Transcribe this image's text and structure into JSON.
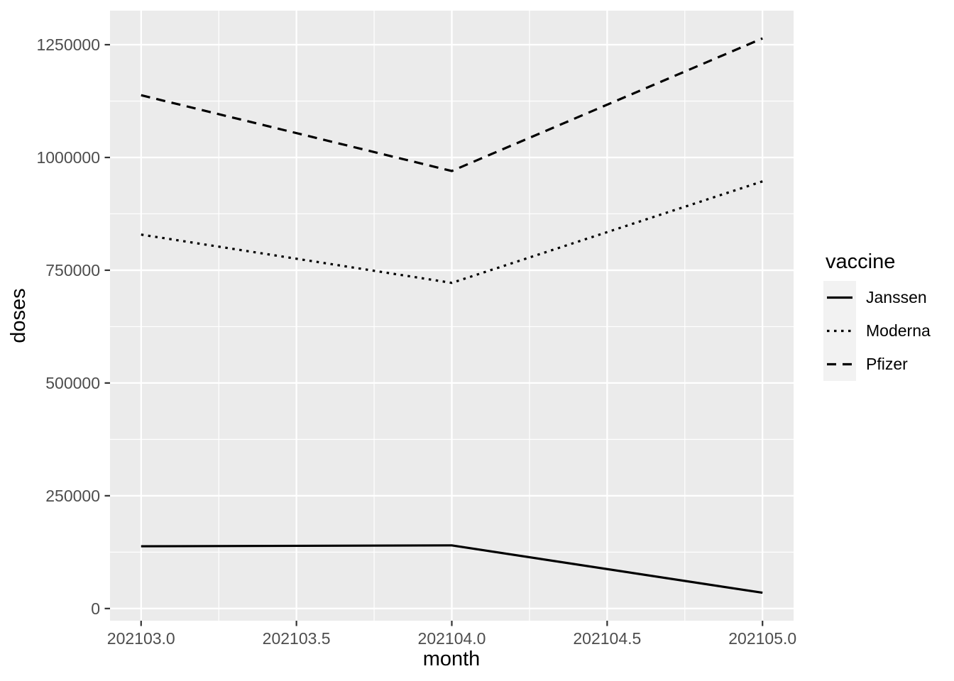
{
  "figure": {
    "background": "#ffffff",
    "panel_background": "#ebebeb",
    "grid_color": "#ffffff",
    "tick_mark_color": "#333333",
    "tick_label_color": "#4d4d4d",
    "axis_title_color": "#000000",
    "line_color": "#000000",
    "legend_key_background": "#f2f2f2"
  },
  "chart_data": {
    "type": "line",
    "title": "",
    "xlabel": "month",
    "ylabel": "doses",
    "x": [
      202103,
      202104,
      202105
    ],
    "series": [
      {
        "name": "Janssen",
        "linetype": "solid",
        "values": [
          138000,
          140000,
          35000
        ]
      },
      {
        "name": "Moderna",
        "linetype": "dotted",
        "values": [
          829000,
          722000,
          947000
        ]
      },
      {
        "name": "Pfizer",
        "linetype": "dashed",
        "values": [
          1138000,
          970000,
          1264000
        ]
      }
    ],
    "xticks": {
      "values": [
        202103.0,
        202103.5,
        202104.0,
        202104.5,
        202105.0
      ],
      "labels": [
        "202103.0",
        "202103.5",
        "202104.0",
        "202104.5",
        "202105.0"
      ]
    },
    "yticks": {
      "values": [
        0,
        250000,
        500000,
        750000,
        1000000,
        1250000
      ],
      "labels": [
        "0",
        "250000",
        "500000",
        "750000",
        "1000000",
        "1250000"
      ]
    },
    "x_minor": [
      202103.25,
      202103.75,
      202104.25,
      202104.75
    ],
    "y_minor": [
      125000,
      375000,
      625000,
      875000,
      1125000
    ],
    "xlim": [
      202102.9,
      202105.1
    ],
    "ylim": [
      -27000,
      1325500
    ],
    "grid": true,
    "legend": {
      "title": "vaccine",
      "position": "right",
      "entries": [
        "Janssen",
        "Moderna",
        "Pfizer"
      ]
    }
  }
}
